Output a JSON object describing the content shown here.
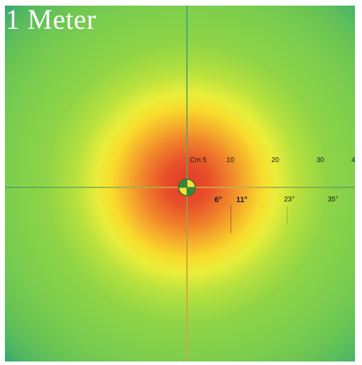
{
  "title": "1 Meter",
  "distance_scale": {
    "labels": [
      "Cm 5",
      "10",
      "20",
      "30",
      "4"
    ]
  },
  "angle_scale": {
    "labels": [
      "6°",
      "11°",
      "23°",
      "35°"
    ]
  }
}
